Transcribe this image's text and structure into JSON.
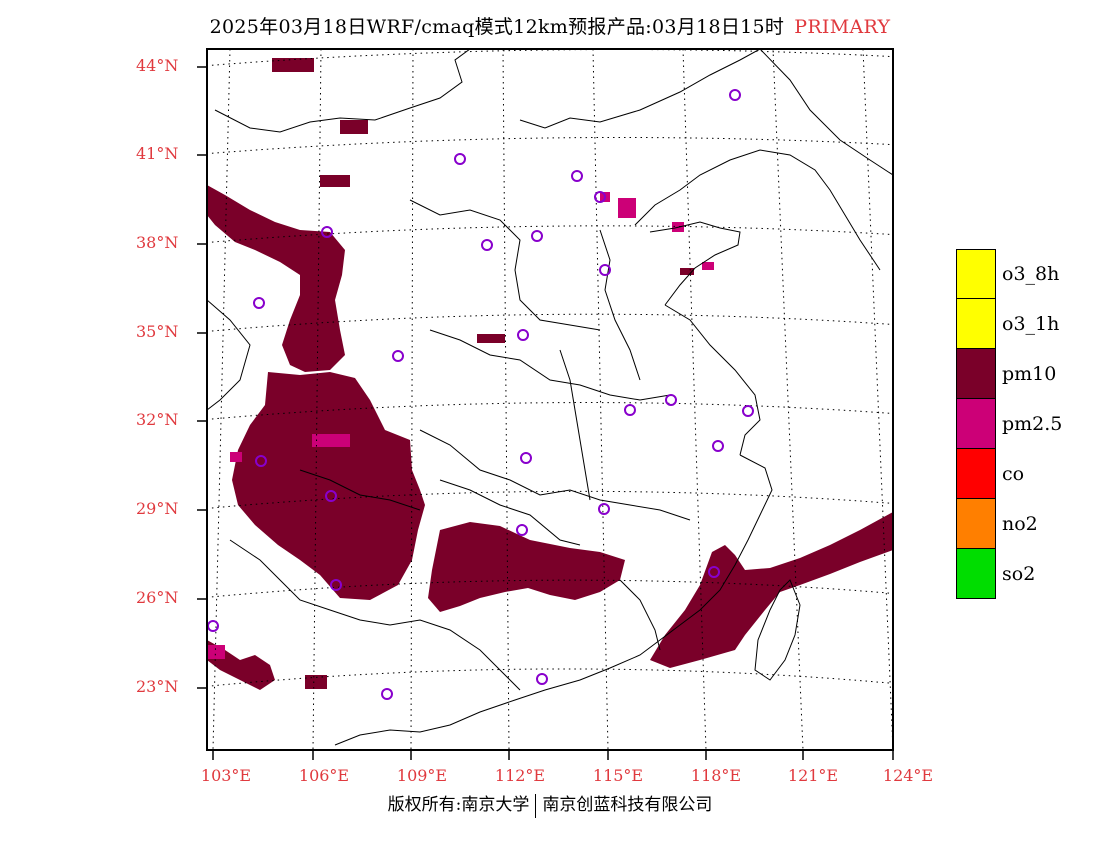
{
  "title": {
    "text": "2025年03月18日WRF/cmaq模式12km预报产品:03月18日15时",
    "tag": "PRIMARY"
  },
  "map": {
    "lon_labels": [
      "103°E",
      "106°E",
      "109°E",
      "112°E",
      "115°E",
      "118°E",
      "121°E",
      "124°E"
    ],
    "lat_labels": [
      "44°N",
      "41°N",
      "38°N",
      "35°N",
      "32°N",
      "29°N",
      "26°N",
      "23°N"
    ],
    "primary_pollutant_area": "pm10",
    "colors": {
      "pm10": "#7a0029",
      "pm25": "#cc0077",
      "city_marker": "#8800cc",
      "axis_label": "#e0393e"
    }
  },
  "legend": {
    "items": [
      {
        "label": "o3_8h",
        "color": "#ffff00"
      },
      {
        "label": "o3_1h",
        "color": "#ffff00"
      },
      {
        "label": "pm10",
        "color": "#7a0029"
      },
      {
        "label": "pm2.5",
        "color": "#cc0077"
      },
      {
        "label": "co",
        "color": "#ff0000"
      },
      {
        "label": "no2",
        "color": "#ff7f00"
      },
      {
        "label": "so2",
        "color": "#00dd00"
      }
    ]
  },
  "footer": {
    "left": "版权所有:南京大学",
    "right": "南京创蓝科技有限公司"
  }
}
